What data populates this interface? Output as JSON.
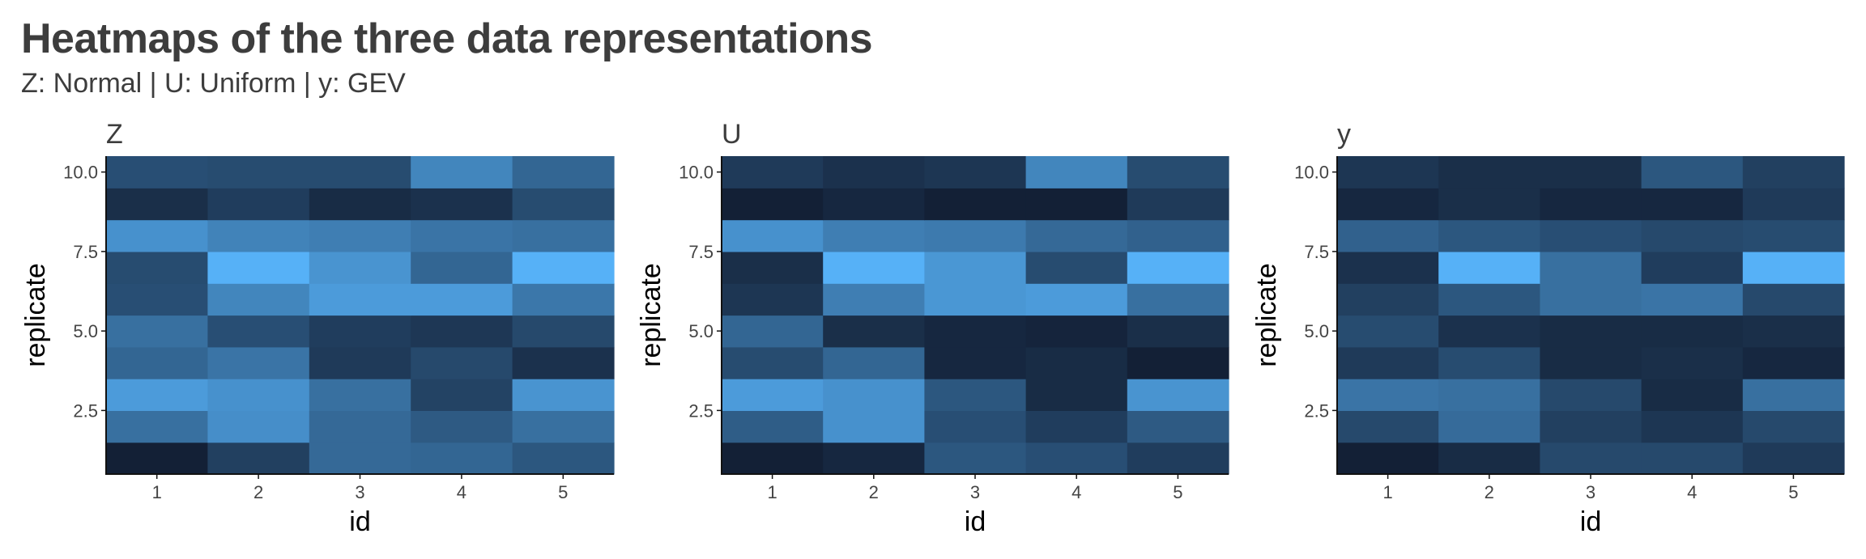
{
  "header": {
    "title": "Heatmaps of the three data representations",
    "subtitle": "Z: Normal | U: Uniform | y: GEV"
  },
  "colors": {
    "low": "#132036",
    "high": "#56B1F7",
    "text": "#3d3d3d",
    "tick_text": "#444444",
    "axis_line": "#111111"
  },
  "chart_data": [
    {
      "type": "heatmap",
      "title": "Z",
      "xlabel": "id",
      "ylabel": "replicate",
      "x": [
        1,
        2,
        3,
        4,
        5
      ],
      "y": [
        1,
        2,
        3,
        4,
        5,
        6,
        7,
        8,
        9,
        10
      ],
      "x_ticks": [
        "1",
        "2",
        "3",
        "4",
        "5"
      ],
      "y_ticks": [
        2.5,
        5.0,
        7.5,
        10.0
      ],
      "y_tick_labels": [
        "2.5",
        "5.0",
        "7.5",
        "10.0"
      ],
      "ylim": [
        0.5,
        10.5
      ],
      "legend": "none",
      "grid": false,
      "values": [
        [
          0.0,
          0.22,
          0.5,
          0.48,
          0.38
        ],
        [
          0.55,
          0.76,
          0.5,
          0.4,
          0.55
        ],
        [
          0.85,
          0.78,
          0.55,
          0.24,
          0.8
        ],
        [
          0.48,
          0.58,
          0.18,
          0.28,
          0.12
        ],
        [
          0.55,
          0.32,
          0.2,
          0.16,
          0.28
        ],
        [
          0.32,
          0.7,
          0.85,
          0.85,
          0.6
        ],
        [
          0.3,
          1.0,
          0.8,
          0.48,
          1.0
        ],
        [
          0.78,
          0.68,
          0.65,
          0.58,
          0.55
        ],
        [
          0.1,
          0.2,
          0.08,
          0.12,
          0.3
        ],
        [
          0.32,
          0.3,
          0.3,
          0.7,
          0.48
        ]
      ]
    },
    {
      "type": "heatmap",
      "title": "U",
      "xlabel": "id",
      "ylabel": "replicate",
      "x": [
        1,
        2,
        3,
        4,
        5
      ],
      "y": [
        1,
        2,
        3,
        4,
        5,
        6,
        7,
        8,
        9,
        10
      ],
      "x_ticks": [
        "1",
        "2",
        "3",
        "4",
        "5"
      ],
      "y_ticks": [
        2.5,
        5.0,
        7.5,
        10.0
      ],
      "y_tick_labels": [
        "2.5",
        "5.0",
        "7.5",
        "10.0"
      ],
      "ylim": [
        0.5,
        10.5
      ],
      "legend": "none",
      "grid": false,
      "values": [
        [
          0.0,
          0.05,
          0.38,
          0.32,
          0.2
        ],
        [
          0.42,
          0.78,
          0.32,
          0.2,
          0.4
        ],
        [
          0.85,
          0.78,
          0.38,
          0.08,
          0.8
        ],
        [
          0.3,
          0.48,
          0.05,
          0.08,
          0.0
        ],
        [
          0.48,
          0.1,
          0.05,
          0.03,
          0.1
        ],
        [
          0.15,
          0.65,
          0.82,
          0.85,
          0.55
        ],
        [
          0.1,
          1.0,
          0.82,
          0.3,
          1.0
        ],
        [
          0.78,
          0.65,
          0.62,
          0.5,
          0.45
        ],
        [
          0.0,
          0.05,
          0.0,
          0.0,
          0.18
        ],
        [
          0.18,
          0.12,
          0.15,
          0.7,
          0.3
        ]
      ]
    },
    {
      "type": "heatmap",
      "title": "y",
      "xlabel": "id",
      "ylabel": "replicate",
      "x": [
        1,
        2,
        3,
        4,
        5
      ],
      "y": [
        1,
        2,
        3,
        4,
        5,
        6,
        7,
        8,
        9,
        10
      ],
      "x_ticks": [
        "1",
        "2",
        "3",
        "4",
        "5"
      ],
      "y_ticks": [
        2.5,
        5.0,
        7.5,
        10.0
      ],
      "y_tick_labels": [
        "2.5",
        "5.0",
        "7.5",
        "10.0"
      ],
      "ylim": [
        0.5,
        10.5
      ],
      "legend": "none",
      "grid": false,
      "values": [
        [
          0.0,
          0.08,
          0.28,
          0.28,
          0.18
        ],
        [
          0.28,
          0.52,
          0.22,
          0.15,
          0.28
        ],
        [
          0.58,
          0.55,
          0.28,
          0.08,
          0.55
        ],
        [
          0.18,
          0.3,
          0.08,
          0.1,
          0.05
        ],
        [
          0.3,
          0.12,
          0.08,
          0.08,
          0.1
        ],
        [
          0.22,
          0.38,
          0.55,
          0.58,
          0.28
        ],
        [
          0.12,
          1.0,
          0.55,
          0.2,
          1.0
        ],
        [
          0.45,
          0.38,
          0.32,
          0.28,
          0.3
        ],
        [
          0.05,
          0.1,
          0.05,
          0.05,
          0.18
        ],
        [
          0.15,
          0.1,
          0.1,
          0.38,
          0.22
        ]
      ]
    }
  ]
}
